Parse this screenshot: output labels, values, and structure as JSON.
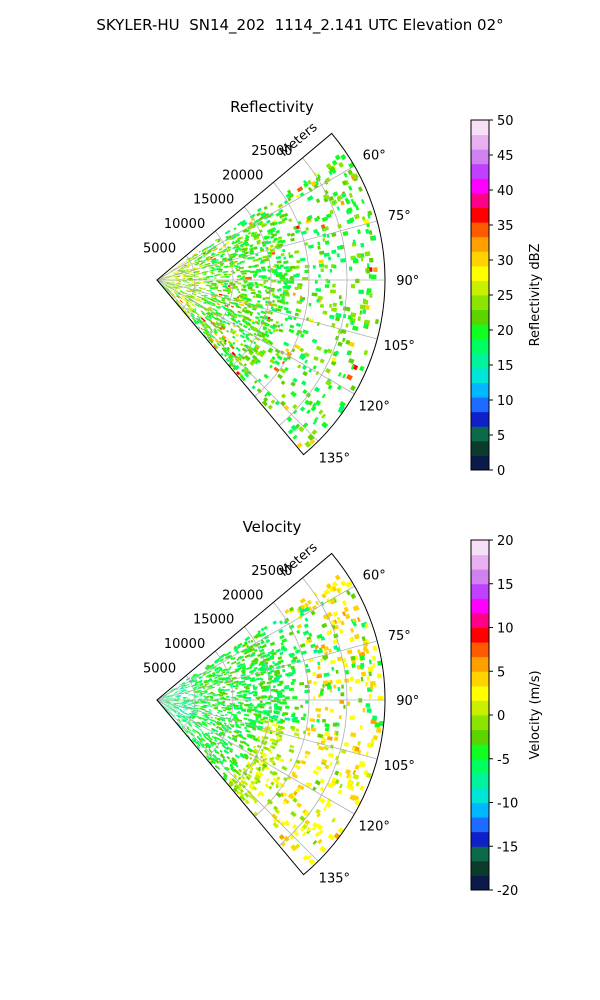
{
  "suptitle": "SKYLER-HU  SN14_202  1114_2.141 UTC Elevation 02°",
  "chart_data": [
    {
      "type": "heatmap",
      "projection": "polar-sector",
      "title": "Reflectivity",
      "radial_label": "Meters",
      "radial_ticks": [
        5000,
        10000,
        15000,
        20000,
        25000
      ],
      "radial_range": [
        0,
        30000
      ],
      "azimuth_range_deg": [
        50,
        140
      ],
      "azimuth_ticks_deg": [
        60,
        75,
        90,
        105,
        120,
        135
      ],
      "azimuth_tick_labels": [
        "60°",
        "75°",
        "90°",
        "105°",
        "120°",
        "135°"
      ],
      "grid": true,
      "colorbar": {
        "label": "Reflectivity dBZ",
        "range": [
          0,
          50
        ],
        "ticks": [
          0,
          5,
          10,
          15,
          20,
          25,
          30,
          35,
          40,
          45,
          50
        ],
        "colors": [
          "#0a1a4a",
          "#0b3b2a",
          "#0a6a4a",
          "#1020c8",
          "#1e6cff",
          "#00b8ff",
          "#00e6d6",
          "#00f29a",
          "#00ff60",
          "#10ff20",
          "#5cd400",
          "#8ae600",
          "#c8f000",
          "#ffff00",
          "#ffd200",
          "#ffa000",
          "#ff5a00",
          "#ff0000",
          "#ff0088",
          "#ff00ff",
          "#c040ff",
          "#d080f0",
          "#e8b0f0",
          "#f7e0f7"
        ]
      },
      "dominant_values_description": "",
      "echo_band_range_m": [
        15000,
        30000
      ]
    },
    {
      "type": "heatmap",
      "projection": "polar-sector",
      "title": "Velocity",
      "radial_label": "Meters",
      "radial_ticks": [
        5000,
        10000,
        15000,
        20000,
        25000
      ],
      "radial_range": [
        0,
        30000
      ],
      "azimuth_range_deg": [
        50,
        140
      ],
      "azimuth_ticks_deg": [
        60,
        75,
        90,
        105,
        120,
        135
      ],
      "azimuth_tick_labels": [
        "60°",
        "75°",
        "90°",
        "105°",
        "120°",
        "135°"
      ],
      "grid": true,
      "colorbar": {
        "label": "Velocity (m/s)",
        "range": [
          -20,
          20
        ],
        "ticks": [
          -20,
          -15,
          -10,
          -5,
          0,
          5,
          10,
          15,
          20
        ],
        "colors": [
          "#0a1a4a",
          "#0b3b2a",
          "#0a6a4a",
          "#1020c8",
          "#1e6cff",
          "#00b8ff",
          "#00e6d6",
          "#00f29a",
          "#00ff60",
          "#10ff20",
          "#5cd400",
          "#8ae600",
          "#c8f000",
          "#ffff00",
          "#ffd200",
          "#ffa000",
          "#ff5a00",
          "#ff0000",
          "#ff0088",
          "#ff00ff",
          "#c040ff",
          "#d080f0",
          "#e8b0f0",
          "#f7e0f7"
        ]
      }
    }
  ]
}
